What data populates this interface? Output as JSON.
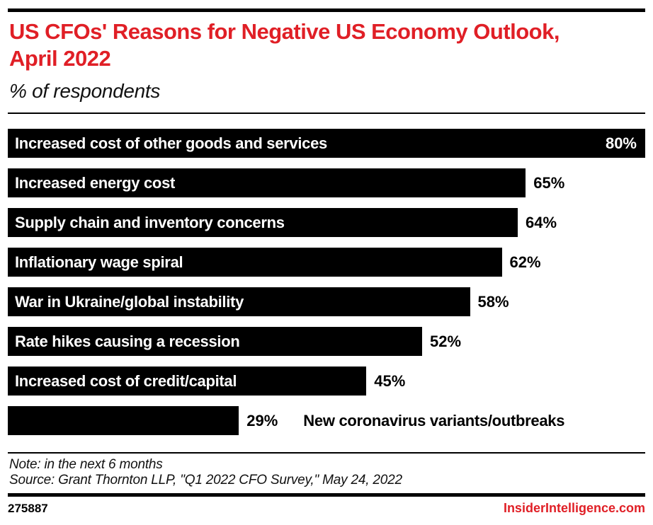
{
  "header": {
    "title": "US CFOs' Reasons for Negative US Economy Outlook, April 2022",
    "subtitle": "% of respondents"
  },
  "chart_data": {
    "type": "bar",
    "orientation": "horizontal",
    "title": "US CFOs' Reasons for Negative US Economy Outlook, April 2022",
    "subtitle": "% of respondents",
    "categories": [
      "Increased cost of other goods and services",
      "Increased energy cost",
      "Supply chain and inventory concerns",
      "Inflationary wage spiral",
      "War in Ukraine/global instability",
      "Rate hikes causing a recession",
      "Increased cost of credit/capital",
      "New coronavirus variants/outbreaks"
    ],
    "values": [
      80,
      65,
      64,
      62,
      58,
      52,
      45,
      29
    ],
    "value_labels": [
      "80%",
      "65%",
      "64%",
      "62%",
      "58%",
      "52%",
      "45%",
      "29%"
    ],
    "unit": "%",
    "xlim": [
      0,
      80
    ],
    "grid": false,
    "legend": false,
    "bar_color": "#000000",
    "label_layout": [
      "inside",
      "inside",
      "inside",
      "inside",
      "inside",
      "inside",
      "inside",
      "outside"
    ],
    "value_layout": [
      "inside",
      "outside",
      "outside",
      "outside",
      "outside",
      "outside",
      "outside",
      "outside"
    ]
  },
  "footer": {
    "note": "Note: in the next 6 months",
    "source": "Source: Grant Thornton LLP, \"Q1 2022 CFO Survey,\" May 24, 2022",
    "chart_id": "275887",
    "brand": "InsiderIntelligence.com"
  },
  "colors": {
    "accent_red": "#e01f26",
    "bar_black": "#000000",
    "background": "#ffffff"
  }
}
